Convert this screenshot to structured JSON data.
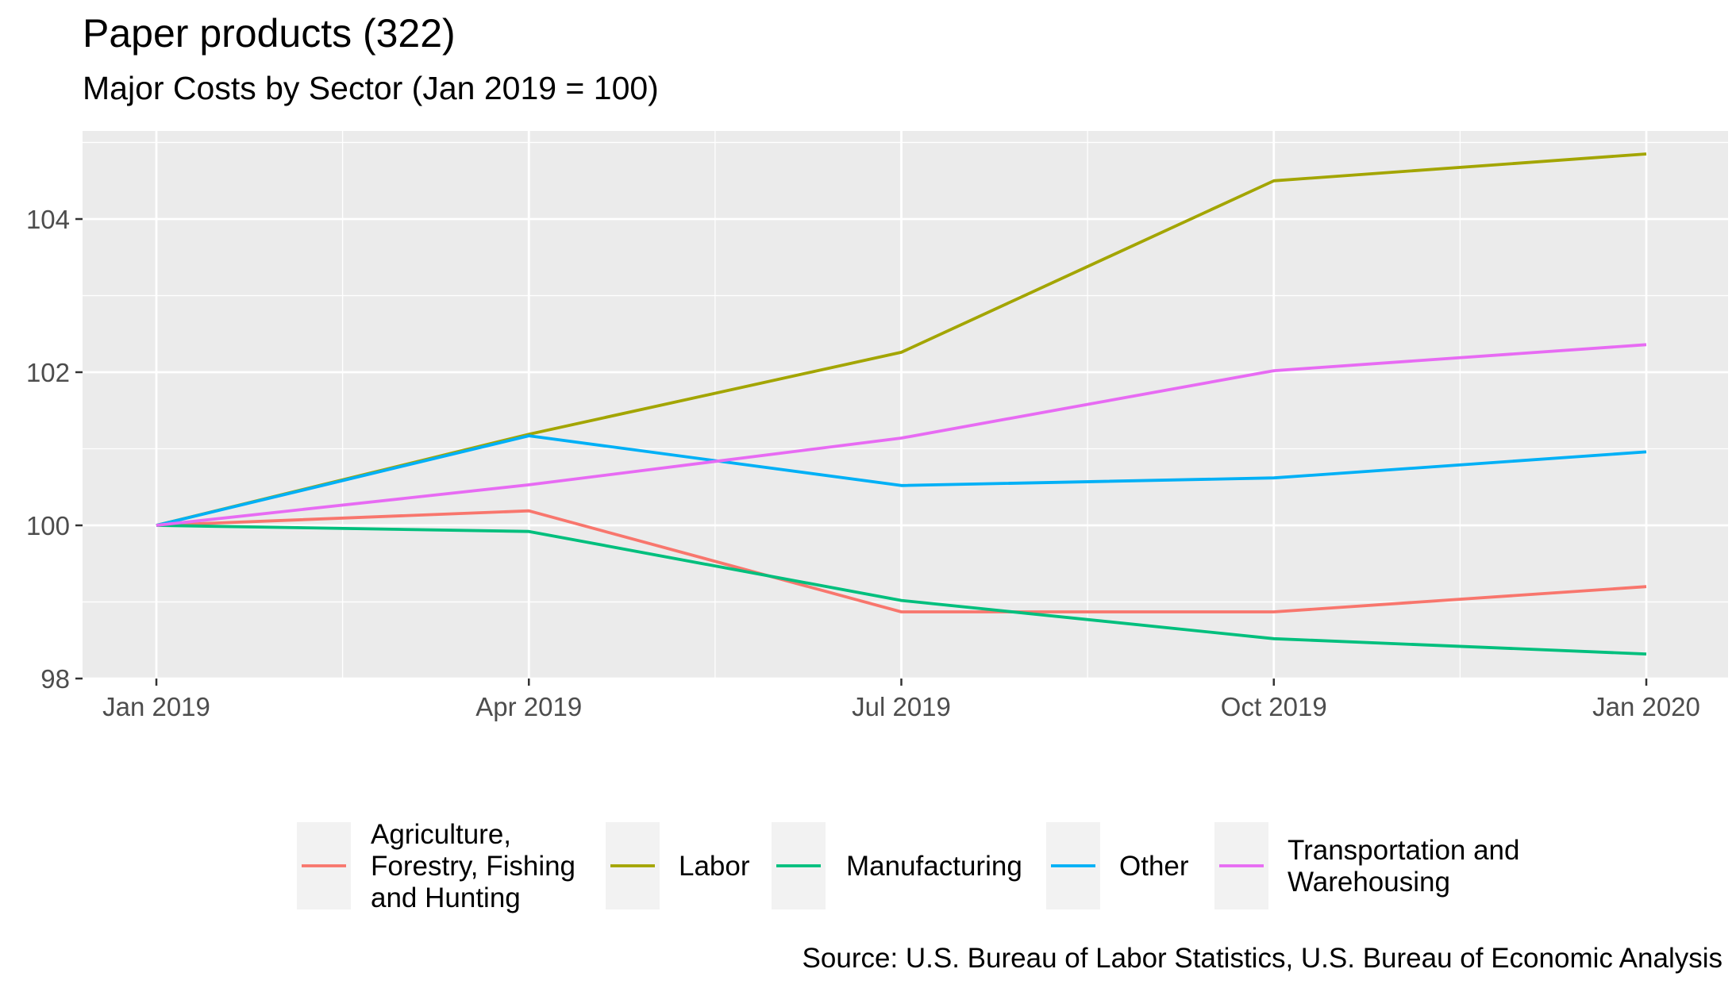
{
  "chart_data": {
    "type": "line",
    "title": "Paper products (322)",
    "subtitle": "Major Costs by Sector (Jan 2019 = 100)",
    "caption": "Source: U.S. Bureau of Labor Statistics, U.S. Bureau of Economic Analysis",
    "xlabel": "",
    "ylabel": "",
    "x": [
      "Jan 2019",
      "Apr 2019",
      "Jul 2019",
      "Oct 2019",
      "Jan 2020"
    ],
    "ylim": [
      98,
      105.2
    ],
    "yticks": [
      98,
      100,
      102,
      104
    ],
    "grid": true,
    "legend_position": "bottom",
    "series": [
      {
        "name": "Agriculture, Forestry, Fishing and Hunting",
        "name_lines": [
          "Agriculture,",
          "Forestry, Fishing",
          "and Hunting"
        ],
        "color": "#F8766D",
        "values": [
          100.0,
          100.19,
          98.87,
          98.87,
          99.2
        ]
      },
      {
        "name": "Labor",
        "name_lines": [
          "Labor"
        ],
        "color": "#A3A500",
        "values": [
          100.0,
          101.19,
          102.26,
          104.5,
          104.85
        ]
      },
      {
        "name": "Manufacturing",
        "name_lines": [
          "Manufacturing"
        ],
        "color": "#00BF7D",
        "values": [
          100.0,
          99.92,
          99.02,
          98.52,
          98.32
        ]
      },
      {
        "name": "Other",
        "name_lines": [
          "Other"
        ],
        "color": "#00B0F6",
        "values": [
          100.0,
          101.17,
          100.52,
          100.62,
          100.96
        ]
      },
      {
        "name": "Transportation and Warehousing",
        "name_lines": [
          "Transportation and",
          "Warehousing"
        ],
        "color": "#E76BF3",
        "values": [
          100.0,
          100.53,
          101.14,
          102.02,
          102.36
        ]
      }
    ]
  }
}
